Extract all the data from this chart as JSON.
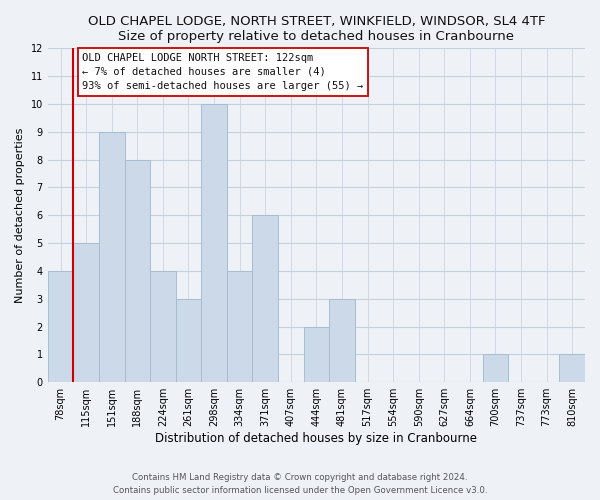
{
  "title": "OLD CHAPEL LODGE, NORTH STREET, WINKFIELD, WINDSOR, SL4 4TF",
  "subtitle": "Size of property relative to detached houses in Cranbourne",
  "xlabel": "Distribution of detached houses by size in Cranbourne",
  "ylabel": "Number of detached properties",
  "bin_labels": [
    "78sqm",
    "115sqm",
    "151sqm",
    "188sqm",
    "224sqm",
    "261sqm",
    "298sqm",
    "334sqm",
    "371sqm",
    "407sqm",
    "444sqm",
    "481sqm",
    "517sqm",
    "554sqm",
    "590sqm",
    "627sqm",
    "664sqm",
    "700sqm",
    "737sqm",
    "773sqm",
    "810sqm"
  ],
  "bar_values": [
    4,
    5,
    9,
    8,
    4,
    3,
    10,
    4,
    6,
    0,
    2,
    3,
    0,
    0,
    0,
    0,
    0,
    1,
    0,
    0,
    1
  ],
  "bar_color": "#ccd9e8",
  "bar_edge_color": "#a8bdd0",
  "vline_color": "#cc0000",
  "vline_position": 1.5,
  "ylim": [
    0,
    12
  ],
  "yticks": [
    0,
    1,
    2,
    3,
    4,
    5,
    6,
    7,
    8,
    9,
    10,
    11,
    12
  ],
  "annotation_text_line1": "OLD CHAPEL LODGE NORTH STREET: 122sqm",
  "annotation_text_line2": "← 7% of detached houses are smaller (4)",
  "annotation_text_line3": "93% of semi-detached houses are larger (55) →",
  "footer_line1": "Contains HM Land Registry data © Crown copyright and database right 2024.",
  "footer_line2": "Contains public sector information licensed under the Open Government Licence v3.0.",
  "fig_bg_color": "#eef2f7",
  "plot_bg_color": "#eef2f7",
  "grid_color": "#c5cfe0",
  "title_fontsize": 9.5,
  "subtitle_fontsize": 8.5,
  "tick_fontsize": 7.0,
  "ylabel_fontsize": 8.0,
  "xlabel_fontsize": 8.5
}
